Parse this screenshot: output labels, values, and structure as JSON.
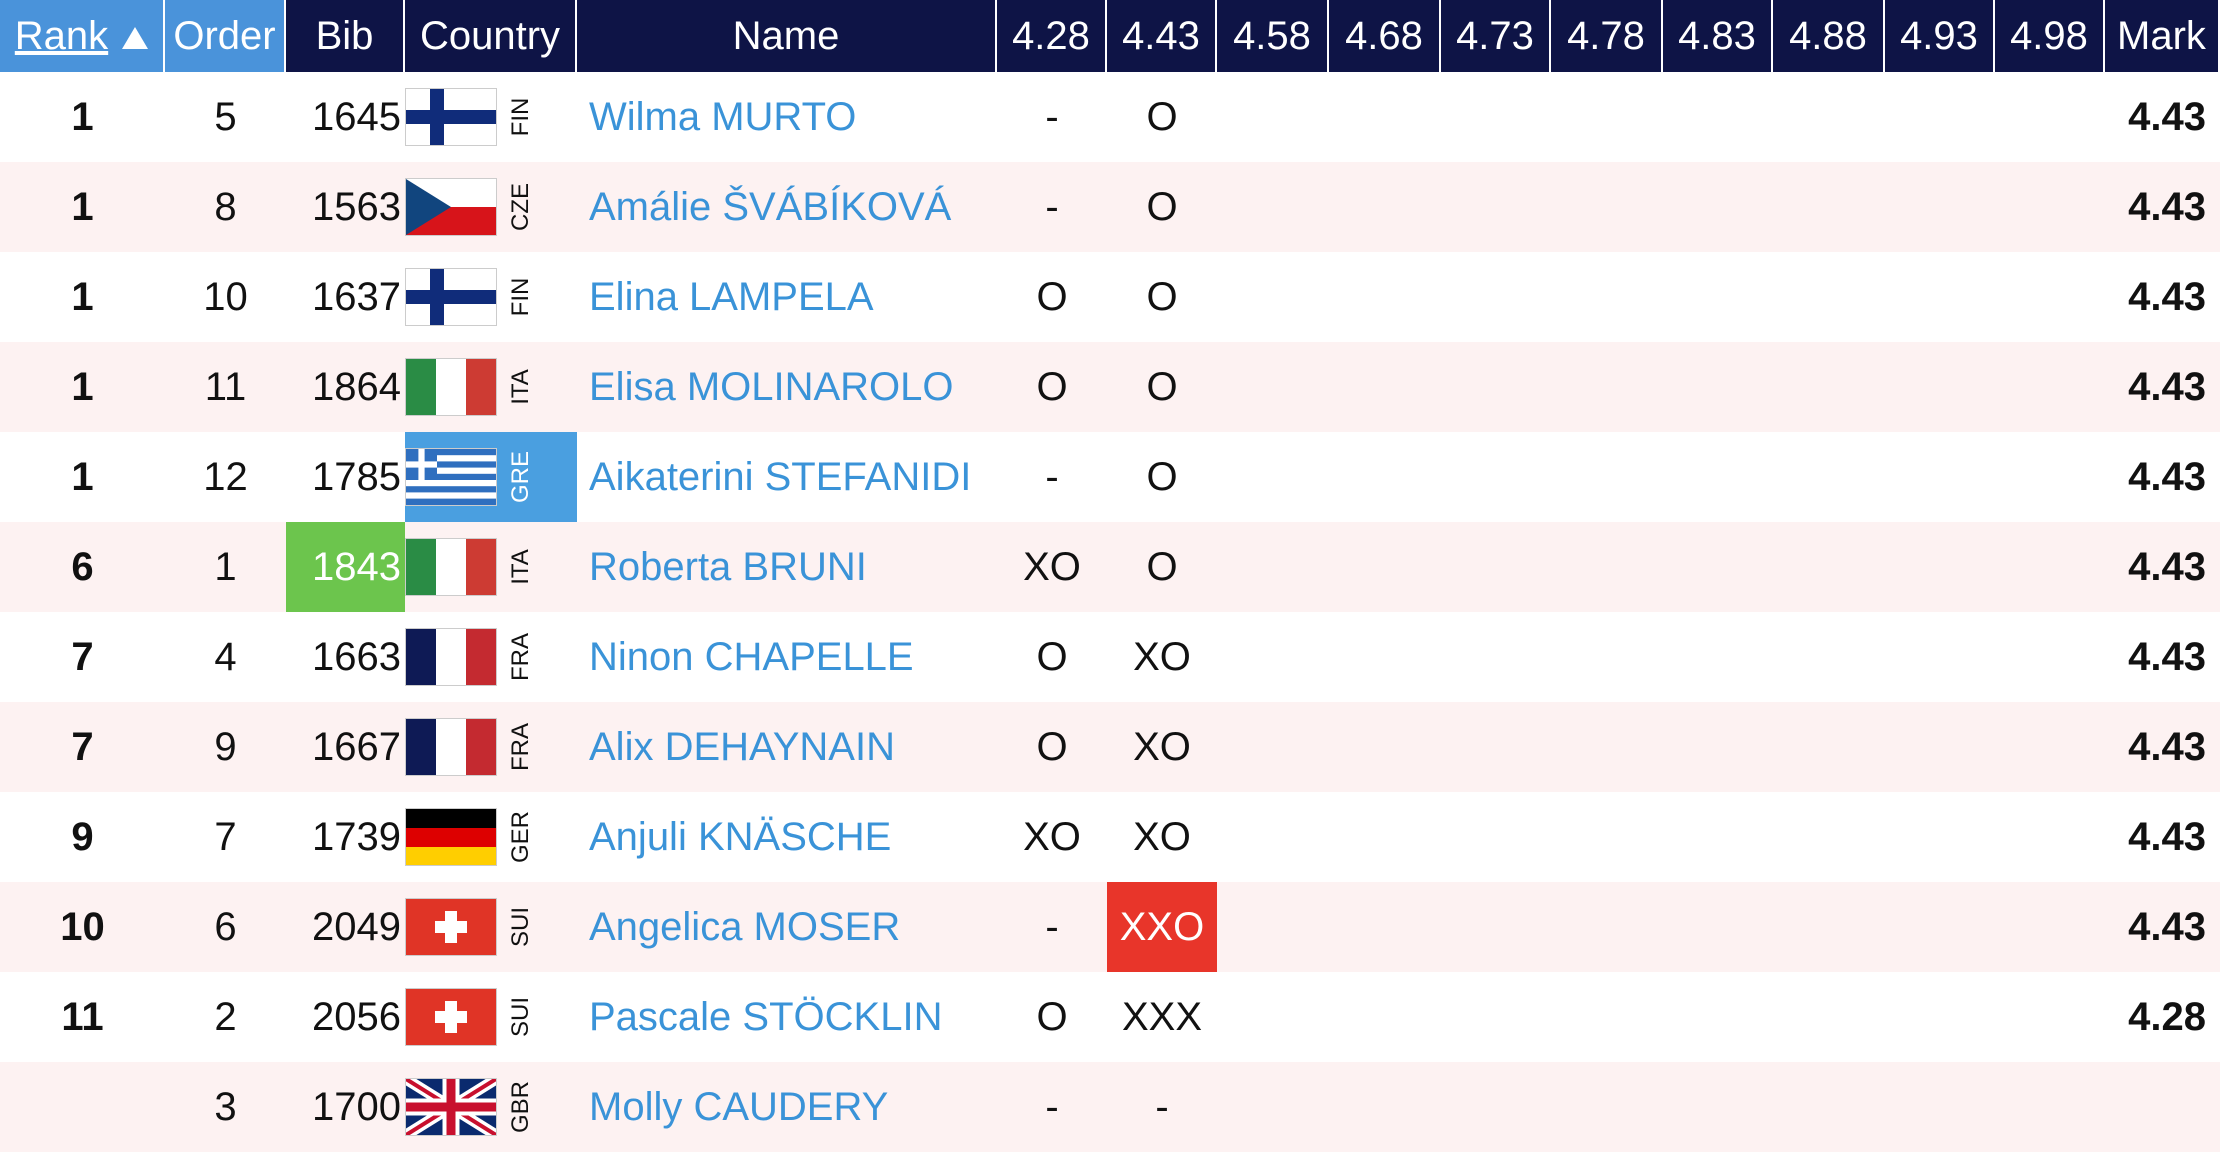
{
  "header": {
    "columns": [
      "Rank",
      "Order",
      "Bib",
      "Country",
      "Name",
      "4.28",
      "4.43",
      "4.58",
      "4.68",
      "4.73",
      "4.78",
      "4.83",
      "4.88",
      "4.93",
      "4.98",
      "Mark"
    ]
  },
  "rows": [
    {
      "rank": 1,
      "order": 5,
      "bib": 1645,
      "country": "FIN",
      "name": "Wilma MURTO",
      "attempts": [
        "-",
        "O"
      ],
      "mark": 4.43
    },
    {
      "rank": 1,
      "order": 8,
      "bib": 1563,
      "country": "CZE",
      "name": "Amálie ŠVÁBÍKOVÁ",
      "attempts": [
        "-",
        "O"
      ],
      "mark": 4.43
    },
    {
      "rank": 1,
      "order": 10,
      "bib": 1637,
      "country": "FIN",
      "name": "Elina LAMPELA",
      "attempts": [
        "O",
        "O"
      ],
      "mark": 4.43
    },
    {
      "rank": 1,
      "order": 11,
      "bib": 1864,
      "country": "ITA",
      "name": "Elisa MOLINAROLO",
      "attempts": [
        "O",
        "O"
      ],
      "mark": 4.43
    },
    {
      "rank": 1,
      "order": 12,
      "bib": 1785,
      "country": "GRE",
      "name": "Aikaterini STEFANIDI",
      "attempts": [
        "-",
        "O"
      ],
      "mark": 4.43
    },
    {
      "rank": 6,
      "order": 1,
      "bib": 1843,
      "country": "ITA",
      "name": "Roberta BRUNI",
      "attempts": [
        "XO",
        "O"
      ],
      "mark": 4.43
    },
    {
      "rank": 7,
      "order": 4,
      "bib": 1663,
      "country": "FRA",
      "name": "Ninon CHAPELLE",
      "attempts": [
        "O",
        "XO"
      ],
      "mark": 4.43
    },
    {
      "rank": 7,
      "order": 9,
      "bib": 1667,
      "country": "FRA",
      "name": "Alix DEHAYNAIN",
      "attempts": [
        "O",
        "XO"
      ],
      "mark": 4.43
    },
    {
      "rank": 9,
      "order": 7,
      "bib": 1739,
      "country": "GER",
      "name": "Anjuli KNÄSCHE",
      "attempts": [
        "XO",
        "XO"
      ],
      "mark": 4.43
    },
    {
      "rank": 10,
      "order": 6,
      "bib": 2049,
      "country": "SUI",
      "name": "Angelica MOSER",
      "attempts": [
        "-",
        "XXO"
      ],
      "mark": 4.43
    },
    {
      "rank": 11,
      "order": 2,
      "bib": 2056,
      "country": "SUI",
      "name": "Pascale STÖCKLIN",
      "attempts": [
        "O",
        "XXX"
      ],
      "mark": 4.28
    },
    {
      "order": 3,
      "bib": 1700,
      "country": "GBR",
      "name": "Molly CAUDERY",
      "attempts": [
        "-",
        "-"
      ]
    }
  ]
}
